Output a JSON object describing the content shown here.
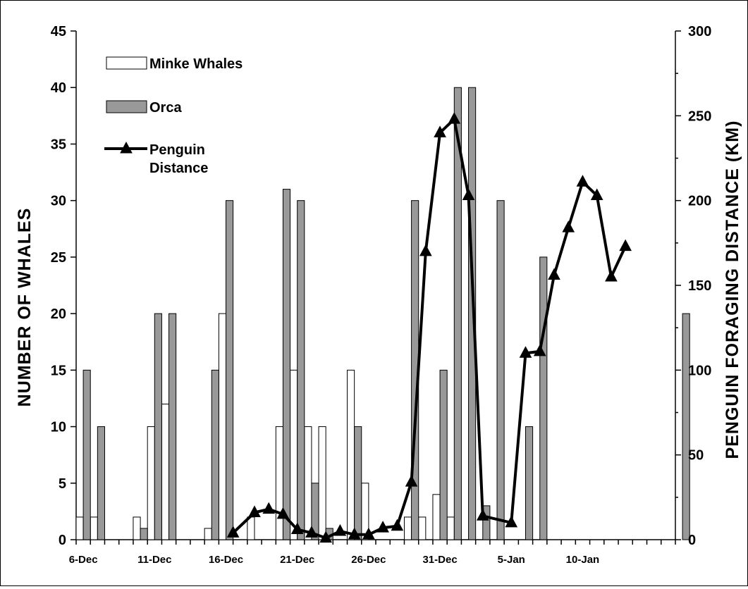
{
  "chart_data": {
    "type": "bar+line",
    "title": "",
    "ylabel_left": "NUMBER OF WHALES",
    "ylabel_right": "PENGUIN FORAGING DISTANCE (KM)",
    "ylim_left": [
      0,
      45
    ],
    "ylim_right": [
      0,
      300
    ],
    "yticks_left": [
      "0",
      "5",
      "10",
      "15",
      "20",
      "25",
      "30",
      "35",
      "40",
      "45"
    ],
    "yticks_right": [
      "0",
      "50",
      "100",
      "150",
      "200",
      "250",
      "300"
    ],
    "xtick_labels": [
      "6-Dec",
      "11-Dec",
      "16-Dec",
      "21-Dec",
      "26-Dec",
      "31-Dec",
      "5-Jan",
      "10-Jan"
    ],
    "xtick_label_indices": [
      0,
      5,
      10,
      15,
      20,
      25,
      30,
      35
    ],
    "num_days": 42,
    "legend_position": "top-left",
    "series": [
      {
        "name": "Minke Whales",
        "kind": "bar",
        "color": "#ffffff",
        "points": [
          [
            0,
            2
          ],
          [
            1,
            2
          ],
          [
            4,
            2
          ],
          [
            5,
            10
          ],
          [
            6,
            12
          ],
          [
            9,
            1
          ],
          [
            10,
            20
          ],
          [
            12,
            2
          ],
          [
            14,
            10
          ],
          [
            15,
            15
          ],
          [
            16,
            10
          ],
          [
            17,
            10
          ],
          [
            19,
            15
          ],
          [
            20,
            5
          ],
          [
            23,
            2
          ],
          [
            24,
            2
          ],
          [
            25,
            4
          ],
          [
            26,
            2
          ]
        ]
      },
      {
        "name": "Orca",
        "kind": "bar",
        "color": "#999999",
        "points": [
          [
            0,
            15
          ],
          [
            1,
            10
          ],
          [
            4,
            1
          ],
          [
            5,
            20
          ],
          [
            6,
            20
          ],
          [
            9,
            15
          ],
          [
            10,
            30
          ],
          [
            14,
            31
          ],
          [
            15,
            30
          ],
          [
            16,
            5
          ],
          [
            17,
            1
          ],
          [
            19,
            10
          ],
          [
            23,
            30
          ],
          [
            25,
            15
          ],
          [
            26,
            40
          ],
          [
            27,
            40
          ],
          [
            28,
            3
          ],
          [
            29,
            30
          ],
          [
            31,
            10
          ],
          [
            32,
            25
          ],
          [
            42,
            20
          ]
        ]
      },
      {
        "name": "Penguin Distance",
        "kind": "line",
        "color": "#000000",
        "axis": "right",
        "points": [
          [
            10.5,
            4
          ],
          [
            12,
            16
          ],
          [
            13,
            18
          ],
          [
            14,
            15
          ],
          [
            15,
            6
          ],
          [
            16,
            4
          ],
          [
            17,
            1
          ],
          [
            18,
            5
          ],
          [
            19,
            3
          ],
          [
            20,
            3
          ],
          [
            21,
            7
          ],
          [
            22,
            8
          ],
          [
            23,
            34
          ],
          [
            24,
            170
          ],
          [
            25,
            240
          ],
          [
            26,
            248
          ],
          [
            27,
            203
          ],
          [
            28,
            14
          ],
          [
            30,
            10
          ],
          [
            31,
            110
          ],
          [
            32,
            111
          ],
          [
            33,
            156
          ],
          [
            34,
            184
          ],
          [
            35,
            211
          ],
          [
            36,
            203
          ],
          [
            37,
            155
          ],
          [
            38,
            173
          ]
        ]
      }
    ]
  },
  "colors": {
    "minke_fill": "#ffffff",
    "orca_fill": "#999999",
    "line": "#000000"
  }
}
